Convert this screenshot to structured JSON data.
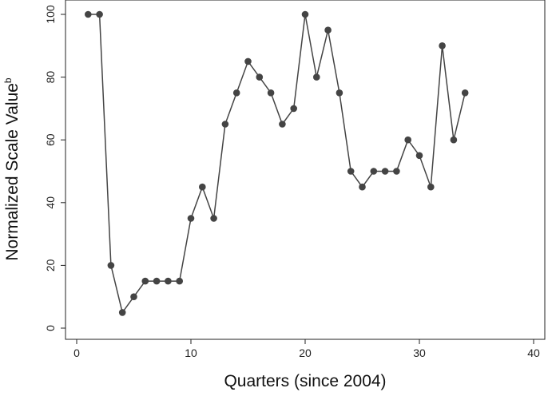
{
  "chart_data": {
    "type": "line",
    "xlabel": "Quarters (since 2004)",
    "ylabel": "Normalized Scale Value",
    "ylabel_superscript": "b",
    "xlim": [
      0,
      40
    ],
    "ylim": [
      0,
      100
    ],
    "xticks": [
      0,
      10,
      20,
      30,
      40
    ],
    "yticks": [
      0,
      20,
      40,
      60,
      80,
      100
    ],
    "grid": false,
    "series": [
      {
        "x": [
          1,
          2,
          3,
          4,
          5,
          6,
          7,
          8,
          9,
          10,
          11,
          12,
          13,
          14,
          15,
          16,
          17,
          18,
          19,
          20,
          21,
          22,
          23,
          24,
          25,
          26,
          27,
          28,
          29,
          30,
          31,
          32,
          33,
          34
        ],
        "y": [
          100,
          100,
          20,
          5,
          10,
          15,
          15,
          15,
          15,
          35,
          45,
          35,
          65,
          75,
          85,
          80,
          75,
          65,
          70,
          100,
          80,
          95,
          75,
          50,
          45,
          50,
          50,
          50,
          60,
          55,
          45,
          90,
          60,
          75
        ],
        "color": "#444444"
      }
    ]
  }
}
